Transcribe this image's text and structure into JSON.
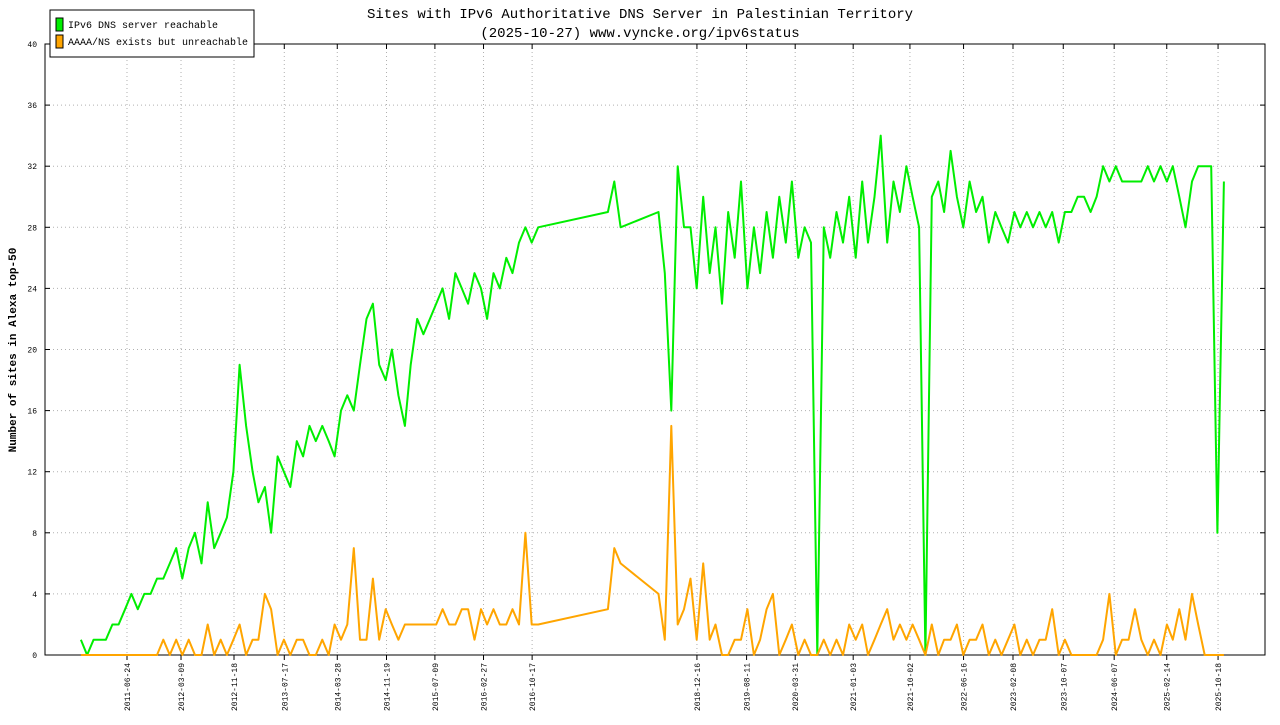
{
  "chart_data": {
    "type": "line",
    "title": "Sites with IPv6 Authoritative DNS Server in Palestinian Territory",
    "subtitle": "(2025-10-27) www.vyncke.org/ipv6status",
    "y_label": "Number of sites in Alexa top-50",
    "legend": "top-left",
    "grid": true,
    "xlim": [
      "2010-05-27",
      "2026-05-31"
    ],
    "ylim": [
      0,
      40
    ],
    "yticks": [
      0,
      4,
      8,
      12,
      16,
      20,
      24,
      28,
      32,
      36,
      40
    ],
    "xticks": [
      "2011-06-24",
      "2012-03-09",
      "2012-11-18",
      "2013-07-17",
      "2014-03-28",
      "2014-11-19",
      "2015-07-09",
      "2016-02-27",
      "2016-10-17",
      "2018-12-16",
      "2019-08-11",
      "2020-03-31",
      "2021-01-03",
      "2021-10-02",
      "2022-06-16",
      "2023-02-08",
      "2023-10-07",
      "2024-06-07",
      "2025-02-14",
      "2025-10-18"
    ],
    "x": [
      "2010-11-15",
      "2010-12-15",
      "2011-01-15",
      "2011-02-15",
      "2011-03-15",
      "2011-04-15",
      "2011-05-15",
      "2011-06-15",
      "2011-07-15",
      "2011-08-15",
      "2011-09-15",
      "2011-10-15",
      "2011-11-15",
      "2011-12-15",
      "2012-01-15",
      "2012-02-15",
      "2012-03-15",
      "2012-04-15",
      "2012-05-15",
      "2012-06-15",
      "2012-07-15",
      "2012-08-15",
      "2012-09-15",
      "2012-10-15",
      "2012-11-15",
      "2012-12-15",
      "2013-01-15",
      "2013-02-15",
      "2013-03-15",
      "2013-04-15",
      "2013-05-15",
      "2013-06-15",
      "2013-07-15",
      "2013-08-15",
      "2013-09-15",
      "2013-10-15",
      "2013-11-15",
      "2013-12-15",
      "2014-01-15",
      "2014-02-15",
      "2014-03-15",
      "2014-04-15",
      "2014-05-15",
      "2014-06-15",
      "2014-07-15",
      "2014-08-15",
      "2014-09-15",
      "2014-10-15",
      "2014-11-15",
      "2014-12-15",
      "2015-01-15",
      "2015-02-15",
      "2015-03-15",
      "2015-04-15",
      "2015-05-15",
      "2015-06-15",
      "2015-07-15",
      "2015-08-15",
      "2015-09-15",
      "2015-10-15",
      "2015-11-15",
      "2015-12-15",
      "2016-01-15",
      "2016-02-15",
      "2016-03-15",
      "2016-04-15",
      "2016-05-15",
      "2016-06-15",
      "2016-07-15",
      "2016-08-15",
      "2016-09-15",
      "2016-10-15",
      "2016-11-15",
      "2017-10-15",
      "2017-11-15",
      "2017-12-15",
      "2018-06-15",
      "2018-07-15",
      "2018-08-15",
      "2018-09-15",
      "2018-10-15",
      "2018-11-15",
      "2018-12-15",
      "2019-01-15",
      "2019-02-15",
      "2019-03-15",
      "2019-04-15",
      "2019-05-15",
      "2019-06-15",
      "2019-07-15",
      "2019-08-15",
      "2019-09-15",
      "2019-10-15",
      "2019-11-15",
      "2019-12-15",
      "2020-01-15",
      "2020-02-15",
      "2020-03-15",
      "2020-04-15",
      "2020-05-15",
      "2020-06-15",
      "2020-07-15",
      "2020-08-15",
      "2020-09-15",
      "2020-10-15",
      "2020-11-15",
      "2020-12-15",
      "2021-01-15",
      "2021-02-15",
      "2021-03-15",
      "2021-04-15",
      "2021-05-15",
      "2021-06-15",
      "2021-07-15",
      "2021-08-15",
      "2021-09-15",
      "2021-10-15",
      "2021-11-15",
      "2021-12-15",
      "2022-01-15",
      "2022-02-15",
      "2022-03-15",
      "2022-04-15",
      "2022-05-15",
      "2022-06-15",
      "2022-07-15",
      "2022-08-15",
      "2022-09-15",
      "2022-10-15",
      "2022-11-15",
      "2022-12-15",
      "2023-01-15",
      "2023-02-15",
      "2023-03-15",
      "2023-04-15",
      "2023-05-15",
      "2023-06-15",
      "2023-07-15",
      "2023-08-15",
      "2023-09-15",
      "2023-10-15",
      "2023-11-15",
      "2023-12-15",
      "2024-01-15",
      "2024-02-15",
      "2024-03-15",
      "2024-04-15",
      "2024-05-15",
      "2024-06-15",
      "2024-07-15",
      "2024-08-15",
      "2024-09-15",
      "2024-10-15",
      "2024-11-15",
      "2024-12-15",
      "2025-01-15",
      "2025-02-15",
      "2025-03-15",
      "2025-04-15",
      "2025-05-15",
      "2025-06-15",
      "2025-07-15",
      "2025-08-15",
      "2025-09-15",
      "2025-10-15",
      "2025-11-15"
    ],
    "series": [
      {
        "name": "IPv6 DNS server reachable",
        "color": "#00ee00",
        "values": [
          1,
          0,
          1,
          1,
          1,
          2,
          2,
          3,
          4,
          3,
          4,
          4,
          5,
          5,
          6,
          7,
          5,
          7,
          8,
          6,
          10,
          7,
          8,
          9,
          12,
          19,
          15,
          12,
          10,
          11,
          8,
          13,
          12,
          11,
          14,
          13,
          15,
          14,
          15,
          14,
          13,
          16,
          17,
          16,
          19,
          22,
          23,
          19,
          18,
          20,
          17,
          15,
          19,
          22,
          21,
          22,
          23,
          24,
          22,
          25,
          24,
          23,
          25,
          24,
          22,
          25,
          24,
          26,
          25,
          27,
          28,
          27,
          28,
          29,
          31,
          28,
          29,
          25,
          16,
          32,
          28,
          28,
          24,
          30,
          25,
          28,
          23,
          29,
          26,
          31,
          24,
          28,
          25,
          29,
          26,
          30,
          27,
          31,
          26,
          28,
          27,
          0,
          28,
          26,
          29,
          27,
          30,
          26,
          31,
          27,
          30,
          34,
          27,
          31,
          29,
          32,
          30,
          28,
          0,
          30,
          31,
          29,
          33,
          30,
          28,
          31,
          29,
          30,
          27,
          29,
          28,
          27,
          29,
          28,
          29,
          28,
          29,
          28,
          29,
          27,
          29,
          29,
          30,
          30,
          29,
          30,
          32,
          31,
          32,
          31,
          31,
          31,
          31,
          32,
          31,
          32,
          31,
          32,
          30,
          28,
          31,
          32,
          32,
          32,
          8,
          31
        ]
      },
      {
        "name": "AAAA/NS exists but unreachable",
        "color": "#ffa500",
        "values": [
          0,
          0,
          0,
          0,
          0,
          0,
          0,
          0,
          0,
          0,
          0,
          0,
          0,
          1,
          0,
          1,
          0,
          1,
          0,
          0,
          2,
          0,
          1,
          0,
          1,
          2,
          0,
          1,
          1,
          4,
          3,
          0,
          1,
          0,
          1,
          1,
          0,
          0,
          1,
          0,
          2,
          1,
          2,
          7,
          1,
          1,
          5,
          1,
          3,
          2,
          1,
          2,
          2,
          2,
          2,
          2,
          2,
          3,
          2,
          2,
          3,
          3,
          1,
          3,
          2,
          3,
          2,
          2,
          3,
          2,
          8,
          2,
          2,
          3,
          7,
          6,
          4,
          1,
          15,
          2,
          3,
          5,
          1,
          6,
          1,
          2,
          0,
          0,
          1,
          1,
          3,
          0,
          1,
          3,
          4,
          0,
          1,
          2,
          0,
          1,
          0,
          0,
          1,
          0,
          1,
          0,
          2,
          1,
          2,
          0,
          1,
          2,
          3,
          1,
          2,
          1,
          2,
          1,
          0,
          2,
          0,
          1,
          1,
          2,
          0,
          1,
          1,
          2,
          0,
          1,
          0,
          1,
          2,
          0,
          1,
          0,
          1,
          1,
          3,
          0,
          1,
          0,
          0,
          0,
          0,
          0,
          1,
          4,
          0,
          1,
          1,
          3,
          1,
          0,
          1,
          0,
          2,
          1,
          3,
          1,
          4,
          2,
          0,
          0,
          0,
          0
        ]
      }
    ]
  }
}
